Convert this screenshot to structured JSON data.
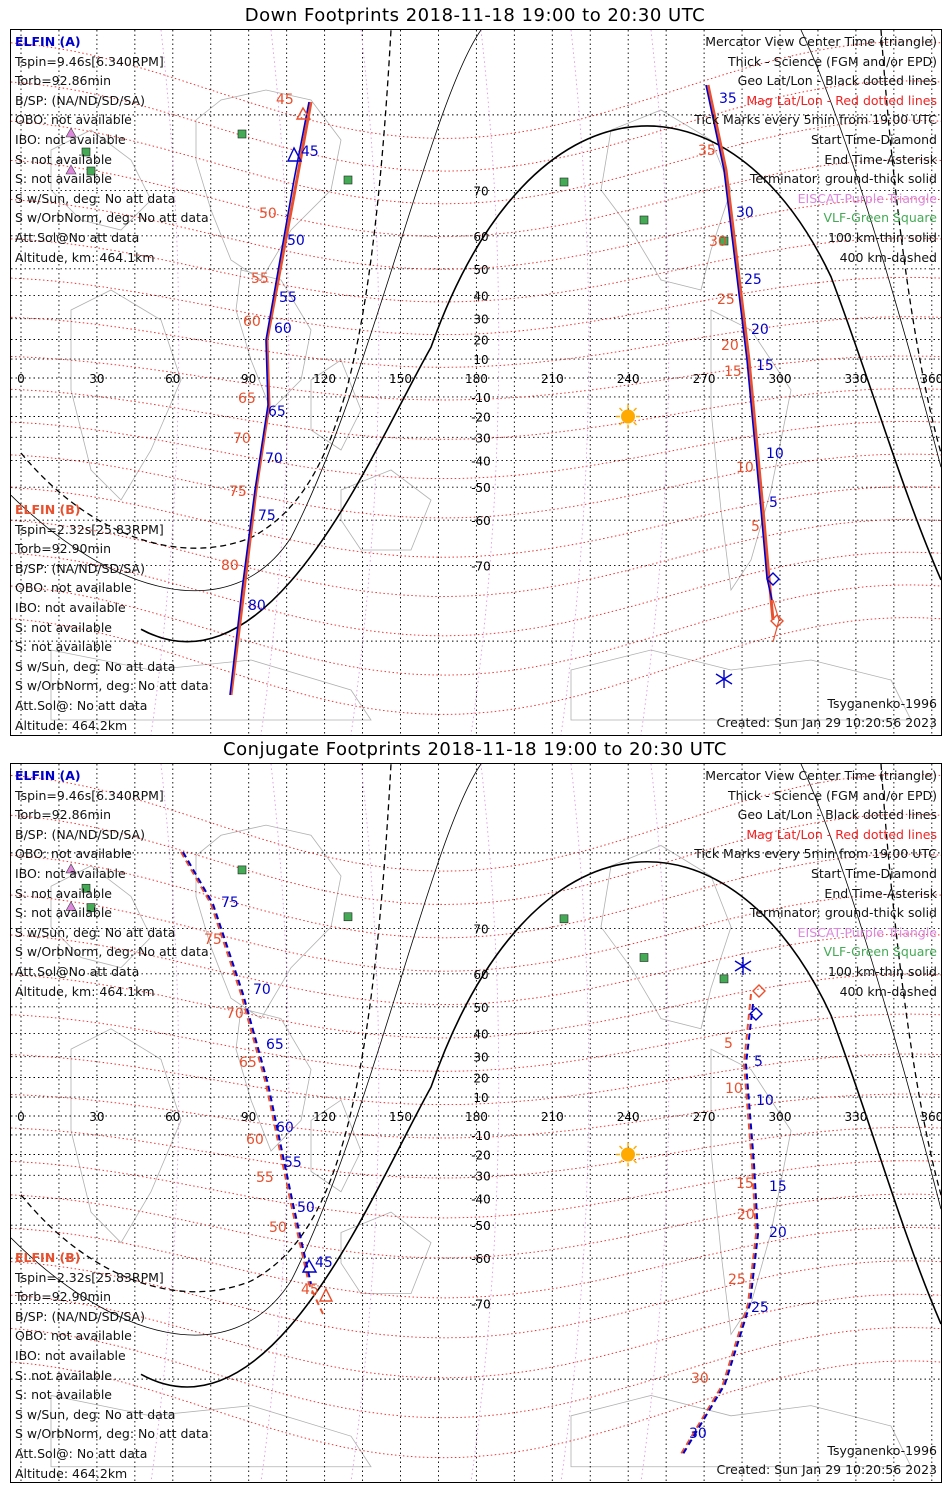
{
  "titles": {
    "top": "Down Footprints 2018-11-18 19:00 to 20:30 UTC",
    "bottom": "Conjugate Footprints 2018-11-18 19:00 to 20:30 UTC"
  },
  "info_a": {
    "name": "ELFIN (A)",
    "lines": [
      "Tspin=9.46s[6.340RPM]",
      "Torb=92.86min",
      "B/SP: (NA/ND/SD/SA)",
      "OBO: not available",
      "IBO: not available",
      "S: not available",
      "S: not available",
      "S w/Sun, deg: No att data",
      "S w/OrbNorm, deg: No att data",
      "Att.Sol@No att data",
      "Altitude, km: 464.1km"
    ]
  },
  "info_b": {
    "name": "ELFIN (B)",
    "lines": [
      "Tspin=2.32s[25.83RPM]",
      "Torb=92.90min",
      "B/SP: (NA/ND/SD/SA)",
      "OBO: not available",
      "IBO: not available",
      "S: not available",
      "S: not available",
      "S w/Sun, deg: No att data",
      "S w/OrbNorm, deg: No att data",
      "Att.Sol@: No att data",
      "Altitude: 464.2km"
    ]
  },
  "legend": [
    {
      "text": "Mercator View Center Time (triangle)",
      "color": "#111111"
    },
    {
      "text": "Thick - Science (FGM and/or EPD)",
      "color": "#111111"
    },
    {
      "text": "Geo Lat/Lon - Black dotted lines",
      "color": "#111111"
    },
    {
      "text": "Mag Lat/Lon - Red dotted lines",
      "color": "#ee2222"
    },
    {
      "text": "Tick Marks every 5min from 19:00 UTC",
      "color": "#111111"
    },
    {
      "text": "Start Time-Diamond",
      "color": "#111111"
    },
    {
      "text": "End Time-Asterisk",
      "color": "#111111"
    },
    {
      "text": "Terminator: ground-thick solid",
      "color": "#111111"
    },
    {
      "text": "EISCAT-Purple Triangle",
      "color": "#dd88dd"
    },
    {
      "text": "VLF-Green Square",
      "color": "#44aa55"
    },
    {
      "text": "100 km-thin solid",
      "color": "#111111"
    },
    {
      "text": "400 km-dashed",
      "color": "#111111"
    }
  ],
  "footer": {
    "model": "Tsyganenko-1996",
    "created": "Created: Sun Jan 29 10:20:56 2023"
  },
  "lon_labels": [
    "0",
    "30",
    "60",
    "90",
    "120",
    "150",
    "180",
    "210",
    "240",
    "270",
    "300",
    "330",
    "360"
  ],
  "lat_labels": [
    "70",
    "60",
    "50",
    "40",
    "30",
    "20",
    "10",
    "-10",
    "-20",
    "-30",
    "-40",
    "-50",
    "-60",
    "-70"
  ],
  "colors": {
    "elfin_a": "#0000cc",
    "elfin_b": "#e8502e",
    "geo_grid": "#000000",
    "mag_grid": "#ee2222",
    "coast": "#b0b0b0",
    "eiscat": "#dd88dd",
    "vlf": "#44aa55",
    "sun": "#ffaa00"
  },
  "down_ticks": {
    "a_west": [
      "45",
      "50",
      "55",
      "60",
      "65",
      "70",
      "75",
      "80"
    ],
    "b_west": [
      "45",
      "50",
      "55",
      "60",
      "65",
      "70",
      "75",
      "80"
    ],
    "a_east": [
      "35",
      "30",
      "25",
      "20",
      "15",
      "10",
      "5"
    ],
    "b_east": [
      "35",
      "30",
      "25",
      "20",
      "15",
      "10",
      "5"
    ]
  },
  "conj_ticks": {
    "a_west": [
      "75",
      "70",
      "65",
      "60",
      "55",
      "50",
      "45"
    ],
    "b_west": [
      "75",
      "70",
      "65",
      "60",
      "55",
      "50",
      "45"
    ],
    "a_east": [
      "5",
      "10",
      "15",
      "20",
      "25",
      "30"
    ],
    "b_east": [
      "5",
      "10",
      "15",
      "20",
      "25",
      "30"
    ]
  }
}
